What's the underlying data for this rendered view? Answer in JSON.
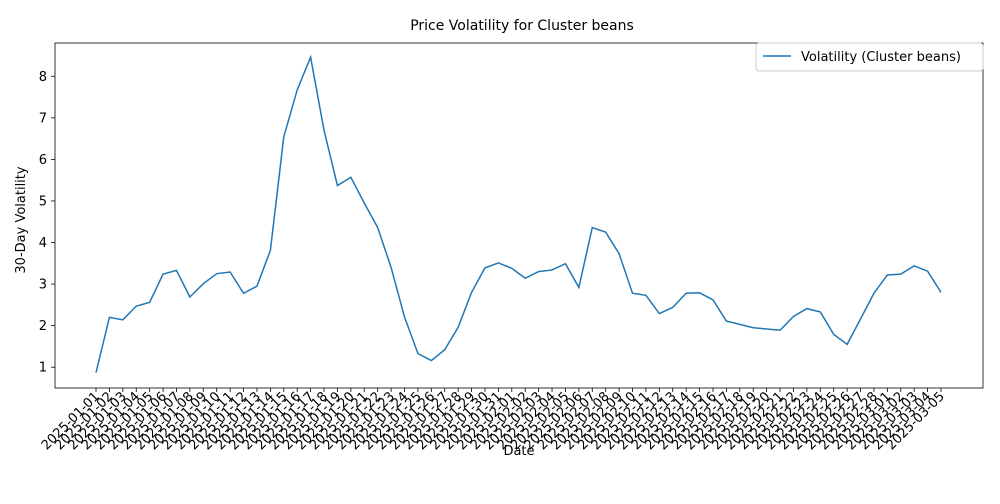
{
  "chart_data": {
    "type": "line",
    "title": "Price Volatility for Cluster beans",
    "xlabel": "Date",
    "ylabel": "30-Day Volatility",
    "ylim": [
      0.5,
      8.8
    ],
    "yticks": [
      1,
      2,
      3,
      4,
      5,
      6,
      7,
      8
    ],
    "grid": false,
    "legend_position": "top-right",
    "line_color": "#1f77b4",
    "x": [
      "2025-01-01",
      "2025-01-02",
      "2025-01-03",
      "2025-01-04",
      "2025-01-05",
      "2025-01-06",
      "2025-01-07",
      "2025-01-08",
      "2025-01-09",
      "2025-01-10",
      "2025-01-11",
      "2025-01-12",
      "2025-01-13",
      "2025-01-14",
      "2025-01-15",
      "2025-01-16",
      "2025-01-17",
      "2025-01-18",
      "2025-01-19",
      "2025-01-20",
      "2025-01-21",
      "2025-01-22",
      "2025-01-23",
      "2025-01-24",
      "2025-01-25",
      "2025-01-26",
      "2025-01-27",
      "2025-01-28",
      "2025-01-29",
      "2025-01-30",
      "2025-01-31",
      "2025-02-01",
      "2025-02-02",
      "2025-02-03",
      "2025-02-04",
      "2025-02-05",
      "2025-02-06",
      "2025-02-07",
      "2025-02-08",
      "2025-02-09",
      "2025-02-10",
      "2025-02-11",
      "2025-02-12",
      "2025-02-13",
      "2025-02-14",
      "2025-02-15",
      "2025-02-16",
      "2025-02-17",
      "2025-02-18",
      "2025-02-19",
      "2025-02-20",
      "2025-02-21",
      "2025-02-22",
      "2025-02-23",
      "2025-02-24",
      "2025-02-25",
      "2025-02-26",
      "2025-02-27",
      "2025-02-28",
      "2025-03-01",
      "2025-03-02",
      "2025-03-03",
      "2025-03-04",
      "2025-03-05"
    ],
    "series": [
      {
        "name": "Volatility (Cluster beans)",
        "values": [
          0.87,
          2.2,
          2.14,
          2.47,
          2.56,
          3.24,
          3.33,
          2.69,
          3.01,
          3.25,
          3.29,
          2.78,
          2.95,
          3.81,
          6.54,
          7.67,
          8.46,
          6.7,
          5.37,
          5.57,
          4.95,
          4.36,
          3.4,
          2.21,
          1.33,
          1.16,
          1.42,
          1.96,
          2.8,
          3.39,
          3.51,
          3.38,
          3.14,
          3.3,
          3.34,
          3.49,
          2.92,
          4.36,
          4.25,
          3.73,
          2.78,
          2.73,
          2.29,
          2.44,
          2.78,
          2.79,
          2.62,
          2.11,
          2.03,
          1.95,
          1.92,
          1.89,
          2.22,
          2.41,
          2.33,
          1.79,
          1.55,
          2.16,
          2.78,
          3.22,
          3.24,
          3.44,
          3.31,
          2.8
        ]
      }
    ]
  }
}
